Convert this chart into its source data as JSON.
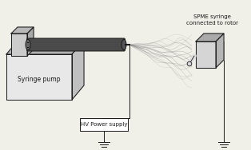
{
  "bg_color": "#f0efe8",
  "line_color": "#1a1a1a",
  "syringe_pump_label": "Syringe pump",
  "hv_label": "HV Power supply",
  "spme_label": "SPME syringe\nconnected to rotor",
  "box_top_color": "#b0b0b0",
  "box_front_color": "#e8e8e8",
  "box_right_color": "#c0c0c0",
  "syringe_dark": "#4a4a4a",
  "syringe_light": "#cccccc",
  "collector_top": "#aaaaaa",
  "collector_front": "#d5d5d5",
  "collector_right": "#b5b5b5",
  "jet_color": "#888888",
  "figsize": [
    3.14,
    1.88
  ],
  "dpi": 100
}
